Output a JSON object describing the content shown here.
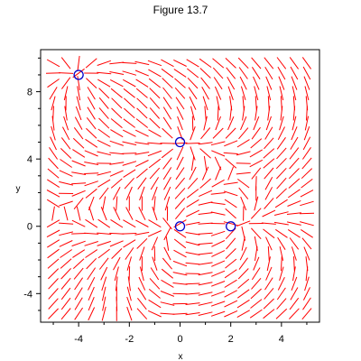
{
  "figure": {
    "title": "Figure 13.7"
  },
  "chart_data": {
    "type": "scatter",
    "title": "Figure 13.7",
    "xlabel": "x",
    "ylabel": "y",
    "xlim": [
      -5.5,
      5.5
    ],
    "ylim": [
      -5.7,
      10.5
    ],
    "x_ticks": [
      -4,
      -2,
      0,
      2,
      4
    ],
    "y_ticks": [
      -4,
      0,
      4,
      8
    ],
    "grid": false,
    "field_color": "#ff0000",
    "marker_color": "#0000cc",
    "series": [
      {
        "kind": "direction-field",
        "grid_x": [
          -5.0,
          5.0,
          21
        ],
        "grid_y": [
          -5.2,
          9.7,
          26
        ]
      },
      {
        "kind": "equilibrium-points",
        "marker": "open-circle",
        "points": [
          [
            -4,
            9
          ],
          [
            0,
            5
          ],
          [
            0,
            0
          ],
          [
            2,
            0
          ]
        ]
      }
    ]
  }
}
